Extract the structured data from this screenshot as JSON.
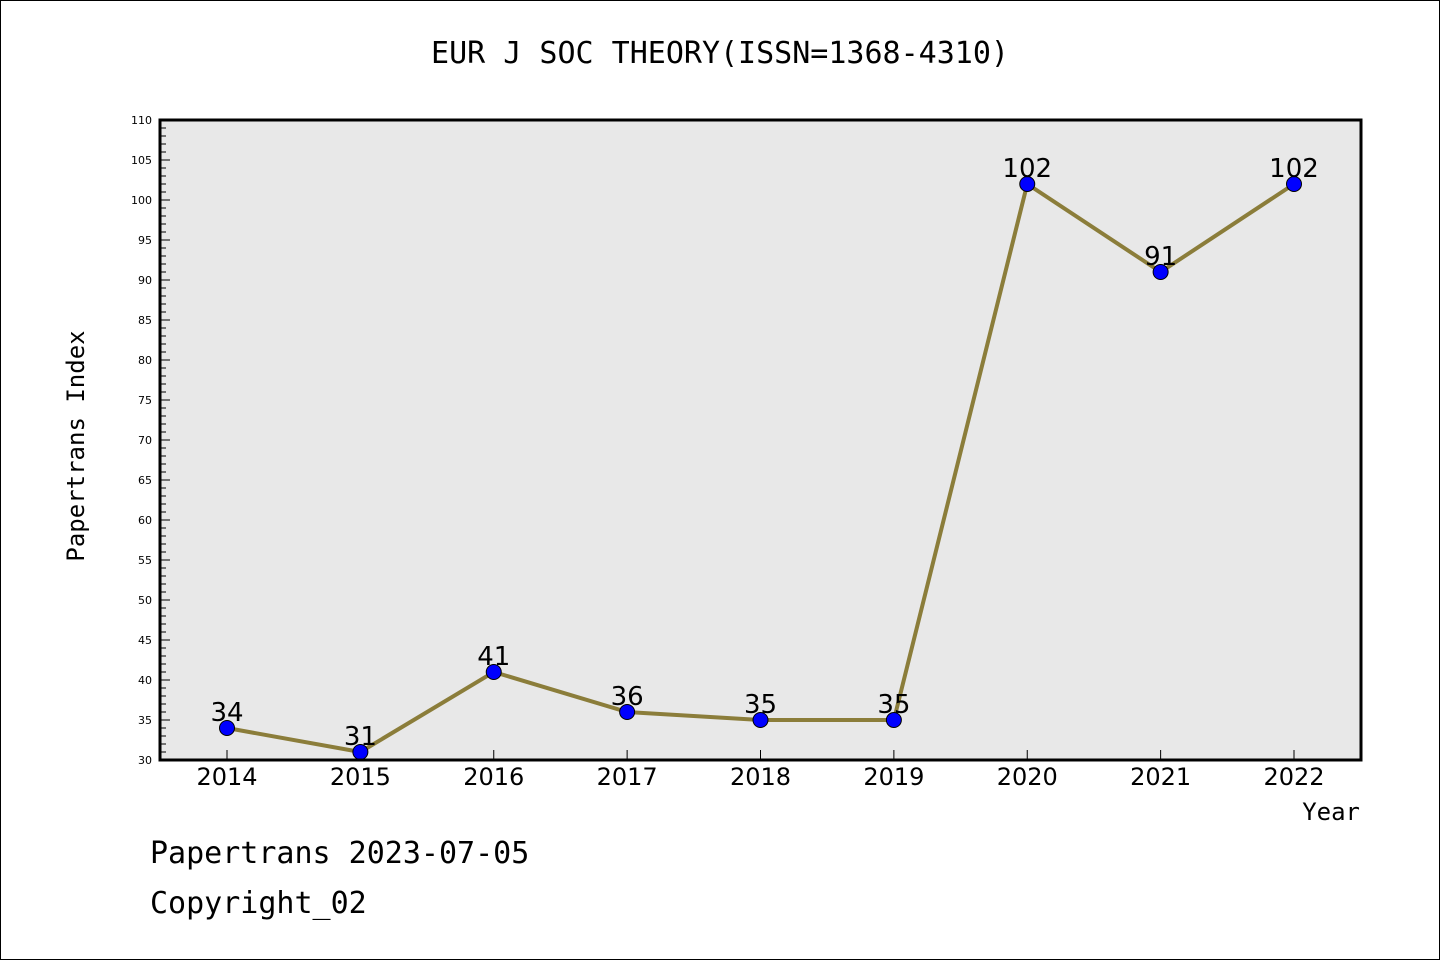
{
  "chart_data": {
    "type": "line",
    "title": "EUR J SOC THEORY(ISSN=1368-4310)",
    "xlabel": "Year",
    "ylabel": "Papertrans Index",
    "categories": [
      "2014",
      "2015",
      "2016",
      "2017",
      "2018",
      "2019",
      "2020",
      "2021",
      "2022"
    ],
    "series": [
      {
        "values": [
          34,
          31,
          41,
          36,
          35,
          35,
          102,
          91,
          102
        ]
      }
    ],
    "ylim": [
      30,
      110
    ],
    "yticks": [
      30,
      35,
      40,
      45,
      50,
      55,
      60,
      65,
      70,
      75,
      80,
      85,
      90,
      95,
      100,
      105,
      110
    ],
    "grid": false,
    "colors": {
      "line": "#8b7d3a",
      "marker": "#0000ff",
      "plot_background": "#e8e8e8"
    }
  },
  "footer": {
    "line1": "Papertrans 2023-07-05",
    "line2": "Copyright_02"
  }
}
